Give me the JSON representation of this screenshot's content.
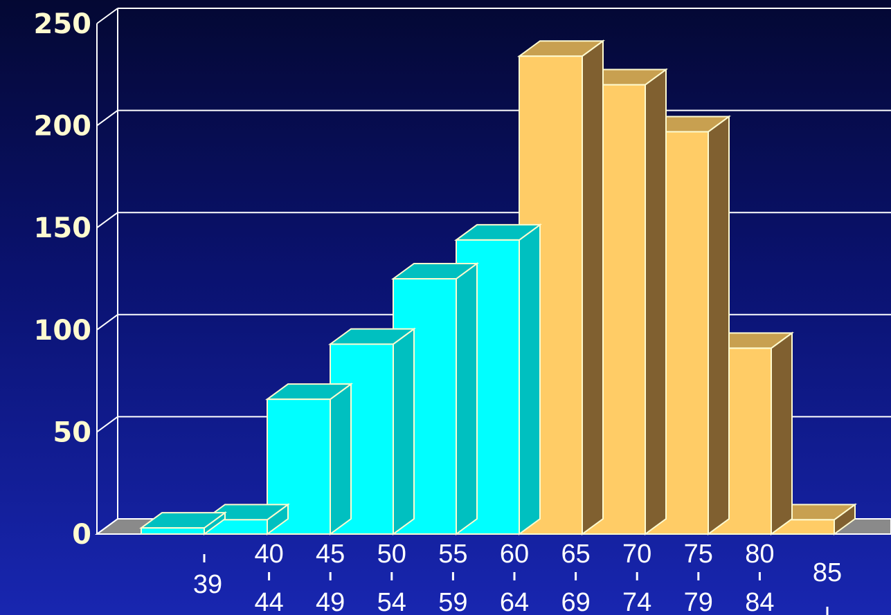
{
  "chart_data": {
    "type": "bar",
    "title": "",
    "xlabel": "",
    "ylabel": "",
    "ylim": [
      0,
      250
    ],
    "y_ticks": [
      0,
      50,
      100,
      150,
      200,
      250
    ],
    "grid": true,
    "style": "3d",
    "categories": [
      {
        "upper": "",
        "lower": "39"
      },
      {
        "upper": "40",
        "lower": "44"
      },
      {
        "upper": "45",
        "lower": "49"
      },
      {
        "upper": "50",
        "lower": "54"
      },
      {
        "upper": "55",
        "lower": "59"
      },
      {
        "upper": "60",
        "lower": "64"
      },
      {
        "upper": "65",
        "lower": "69"
      },
      {
        "upper": "70",
        "lower": "74"
      },
      {
        "upper": "75",
        "lower": "79"
      },
      {
        "upper": "80",
        "lower": "84"
      },
      {
        "upper": "85",
        "lower": ""
      }
    ],
    "values": [
      3,
      7,
      66,
      93,
      125,
      144,
      234,
      220,
      197,
      91,
      7
    ],
    "bar_groups": [
      "cyan",
      "cyan",
      "cyan",
      "cyan",
      "cyan",
      "cyan",
      "orange",
      "orange",
      "orange",
      "orange",
      "orange"
    ],
    "colors": {
      "cyan_front": "#00ffff",
      "cyan_top": "#00c0c0",
      "orange_front": "#ffcc66",
      "orange_top": "#c8a050",
      "orange_side": "#806030",
      "bar_outline": "#fffbd0",
      "floor": "#8a8a8a",
      "grid": "#ffffff",
      "axis_text": "#fffbd0"
    }
  }
}
